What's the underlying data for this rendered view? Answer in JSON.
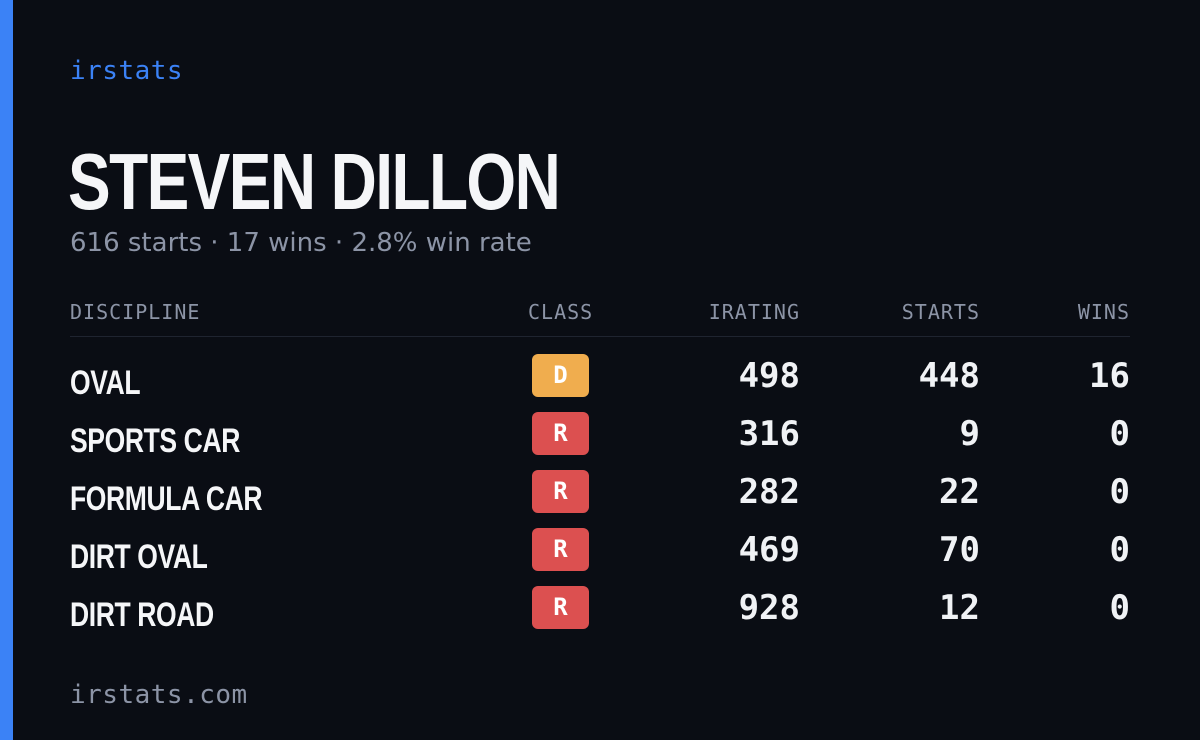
{
  "brand": "irstats",
  "driver": {
    "name": "STEVEN DILLON",
    "summary": "616 starts · 17 wins · 2.8% win rate"
  },
  "table": {
    "headers": {
      "discipline": "DISCIPLINE",
      "class": "CLASS",
      "irating": "IRATING",
      "starts": "STARTS",
      "wins": "WINS"
    },
    "rows": [
      {
        "discipline": "OVAL",
        "class": "D",
        "class_color": "#f0ad4e",
        "irating": "498",
        "starts": "448",
        "wins": "16"
      },
      {
        "discipline": "SPORTS CAR",
        "class": "R",
        "class_color": "#dc5050",
        "irating": "316",
        "starts": "9",
        "wins": "0"
      },
      {
        "discipline": "FORMULA CAR",
        "class": "R",
        "class_color": "#dc5050",
        "irating": "282",
        "starts": "22",
        "wins": "0"
      },
      {
        "discipline": "DIRT OVAL",
        "class": "R",
        "class_color": "#dc5050",
        "irating": "469",
        "starts": "70",
        "wins": "0"
      },
      {
        "discipline": "DIRT ROAD",
        "class": "R",
        "class_color": "#dc5050",
        "irating": "928",
        "starts": "12",
        "wins": "0"
      }
    ]
  },
  "footer": "irstats.com",
  "colors": {
    "background": "#0a0d14",
    "accent": "#3b82f6",
    "muted_text": "#8c94a6",
    "primary_text": "#f5f6f8"
  }
}
